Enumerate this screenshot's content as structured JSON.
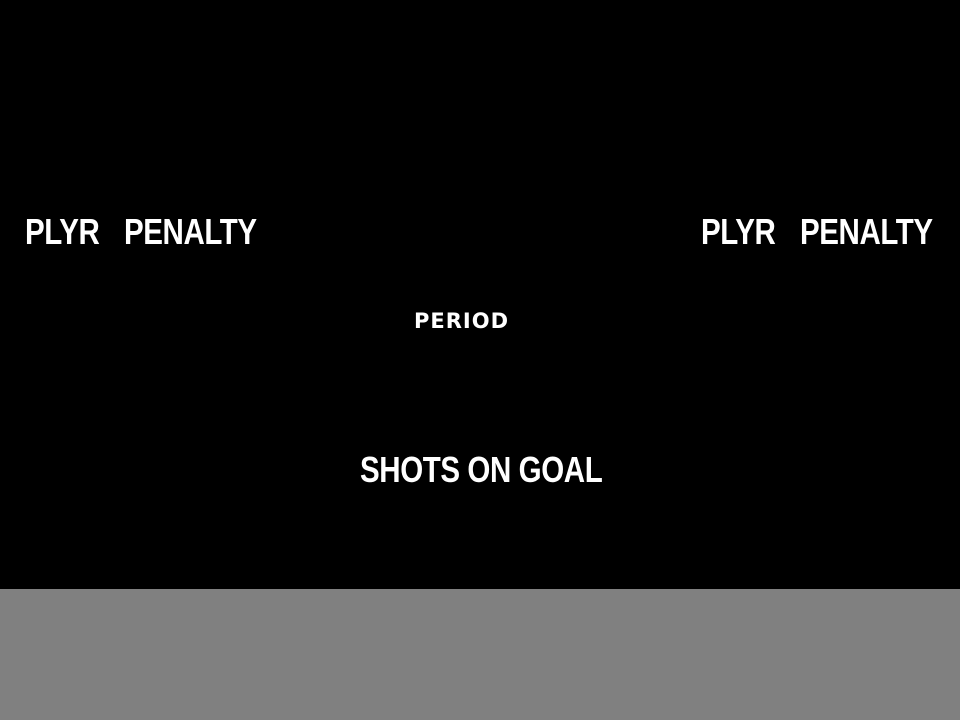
{
  "scoreboard": {
    "home": {
      "player_header": "PLYR",
      "penalty_header": "PENALTY"
    },
    "guest": {
      "player_header": "PLYR",
      "penalty_header": "PENALTY"
    },
    "period_label": "PERIOD",
    "shots_on_goal_label": "SHOTS ON GOAL"
  },
  "colors": {
    "board_background": "#000000",
    "text": "#ffffff",
    "lower_panel": "#808080"
  }
}
